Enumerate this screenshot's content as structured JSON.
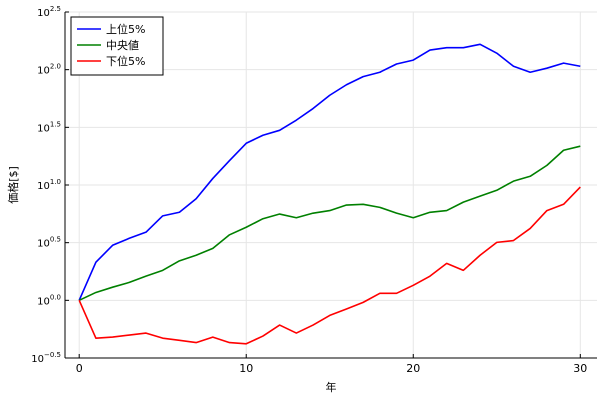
{
  "chart_data": {
    "type": "line",
    "x": [
      0,
      1,
      2,
      3,
      4,
      5,
      6,
      7,
      8,
      9,
      10,
      11,
      12,
      13,
      14,
      15,
      16,
      17,
      18,
      19,
      20,
      21,
      22,
      23,
      24,
      25,
      26,
      27,
      28,
      29,
      30
    ],
    "series": [
      {
        "name": "上位5%",
        "color": "#0000ff",
        "values": [
          1.0,
          2.14,
          3.0,
          3.45,
          3.9,
          5.4,
          5.8,
          7.6,
          11.4,
          16.3,
          23,
          27,
          29.8,
          36.5,
          46,
          60,
          74,
          87,
          95,
          112,
          121,
          148,
          155,
          155,
          166,
          139,
          107,
          95,
          103,
          114,
          107
        ]
      },
      {
        "name": "中央値",
        "color": "#008000",
        "values": [
          1.0,
          1.17,
          1.3,
          1.43,
          1.62,
          1.82,
          2.2,
          2.46,
          2.82,
          3.7,
          4.3,
          5.1,
          5.6,
          5.2,
          5.7,
          6.0,
          6.7,
          6.8,
          6.4,
          5.7,
          5.2,
          5.8,
          6.0,
          7.1,
          8.0,
          9.0,
          10.8,
          11.9,
          14.8,
          20,
          21.7
        ]
      },
      {
        "name": "下位5%",
        "color": "#ff0000",
        "values": [
          1.0,
          0.47,
          0.48,
          0.5,
          0.52,
          0.47,
          0.45,
          0.43,
          0.48,
          0.43,
          0.42,
          0.49,
          0.61,
          0.52,
          0.61,
          0.74,
          0.84,
          0.96,
          1.15,
          1.15,
          1.35,
          1.62,
          2.09,
          1.82,
          2.46,
          3.18,
          3.3,
          4.2,
          6.0,
          6.8,
          9.6
        ]
      }
    ],
    "x_label": "年",
    "y_label": "価格[$]",
    "xlim": [
      -0.85,
      31
    ],
    "xticks": [
      0,
      10,
      20,
      30
    ],
    "ylim": [
      0.3162,
      316.2
    ],
    "log_y": true,
    "yticks": [
      {
        "value": 0.3162,
        "label": "10",
        "exponent": "−0.5"
      },
      {
        "value": 1,
        "label": "10",
        "exponent": "0.0"
      },
      {
        "value": 3.162,
        "label": "10",
        "exponent": "0.5"
      },
      {
        "value": 10,
        "label": "10",
        "exponent": "1.0"
      },
      {
        "value": 31.62,
        "label": "10",
        "exponent": "1.5"
      },
      {
        "value": 100,
        "label": "10",
        "exponent": "2.0"
      },
      {
        "value": 316.2,
        "label": "10",
        "exponent": "2.5"
      }
    ],
    "grid": true,
    "legend": "top-left"
  }
}
